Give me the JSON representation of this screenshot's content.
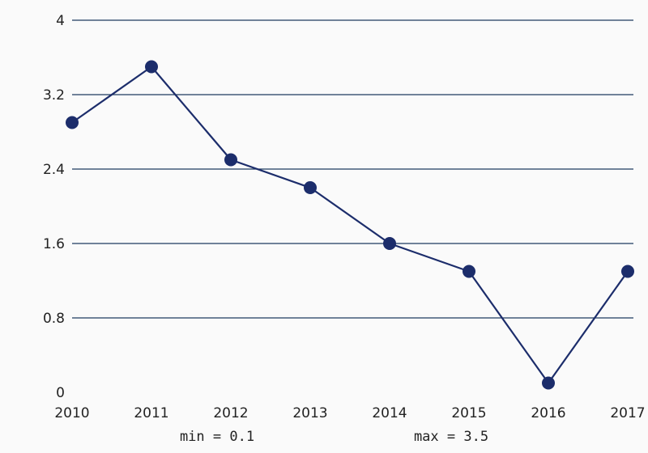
{
  "chart_data": {
    "type": "line",
    "title": "",
    "xlabel": "",
    "ylabel": "",
    "x": [
      "2010",
      "2011",
      "2012",
      "2013",
      "2014",
      "2015",
      "2016",
      "2017"
    ],
    "y": [
      2.9,
      3.5,
      2.5,
      2.2,
      1.6,
      1.3,
      0.1,
      1.3
    ],
    "ylim": [
      0,
      4
    ],
    "yticks": [
      "0",
      "0.8",
      "1.6",
      "2.4",
      "3.2",
      "4"
    ],
    "grid": "horizontal",
    "legend": "none",
    "colors": {
      "line": "#1c2d6b",
      "marker": "#1c2d6b",
      "grid": "#1f3a5f",
      "background": "#fafafa"
    }
  },
  "stats": {
    "min_label": "min = 0.1",
    "max_label": "max = 3.5"
  }
}
